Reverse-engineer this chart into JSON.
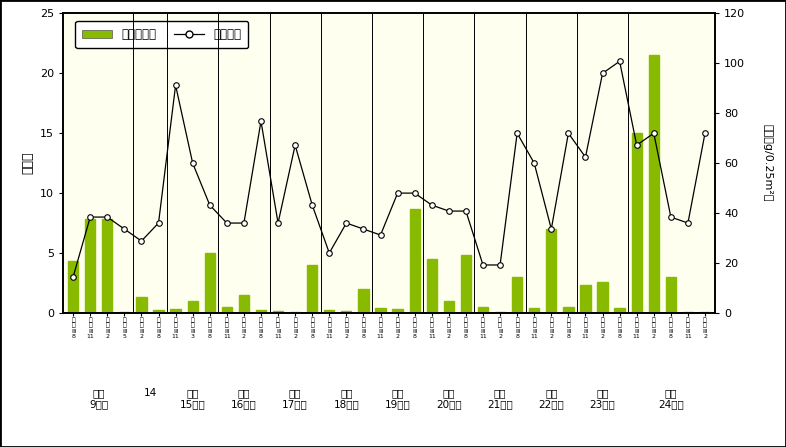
{
  "ylabel_left": "種類数",
  "ylabel_right": "重量（g/0.25m²）",
  "ylim_left": [
    0,
    25
  ],
  "ylim_right": [
    0,
    120
  ],
  "yticks_left": [
    0,
    5,
    10,
    15,
    20,
    25
  ],
  "yticks_right": [
    0,
    20,
    40,
    60,
    80,
    100,
    120
  ],
  "plot_bg_color": "#FFFFF0",
  "fig_bg_color": "#FFFFFF",
  "bar_color": "#88BB00",
  "tick_months": [
    "8",
    "11",
    "2",
    "5",
    "2",
    "8",
    "11",
    "3",
    "8",
    "11",
    "2",
    "8",
    "11",
    "2",
    "8",
    "11",
    "2",
    "8",
    "11",
    "2",
    "8",
    "11",
    "2",
    "8",
    "11",
    "2",
    "8",
    "11",
    "2",
    "8",
    "11",
    "2",
    "8",
    "11",
    "2",
    "8",
    "11",
    "2"
  ],
  "bar_values": [
    4.3,
    7.8,
    7.8,
    0.05,
    1.3,
    0.25,
    0.35,
    1.0,
    5.0,
    0.5,
    1.5,
    0.25,
    0.15,
    0.1,
    4.0,
    0.25,
    0.2,
    2.0,
    0.4,
    0.3,
    8.7,
    4.5,
    1.0,
    4.8,
    0.5,
    0.1,
    3.0,
    0.4,
    7.0,
    0.5,
    2.3,
    2.6,
    0.4,
    15.0,
    21.5,
    3.0,
    0.1,
    0.05
  ],
  "line_values": [
    3.0,
    8.0,
    8.0,
    7.0,
    6.0,
    7.5,
    19.0,
    12.5,
    9.0,
    7.5,
    7.5,
    16.0,
    7.5,
    14.0,
    9.0,
    5.0,
    7.5,
    7.0,
    6.5,
    10.0,
    10.0,
    9.0,
    8.5,
    8.5,
    4.0,
    4.0,
    15.0,
    12.5,
    7.0,
    15.0,
    13.0,
    20.0,
    21.0,
    14.0,
    15.0,
    8.0,
    7.5,
    15.0
  ],
  "year_groups": [
    {
      "label": "平成\n9年度",
      "start": 0,
      "end": 3
    },
    {
      "label": "14",
      "start": 4,
      "end": 5
    },
    {
      "label": "平成\n15年度",
      "start": 6,
      "end": 8
    },
    {
      "label": "平成\n16年度",
      "start": 9,
      "end": 11
    },
    {
      "label": "平成\n17年度",
      "start": 12,
      "end": 14
    },
    {
      "label": "平成\n18年度",
      "start": 15,
      "end": 17
    },
    {
      "label": "平成\n19年度",
      "start": 18,
      "end": 20
    },
    {
      "label": "平成\n20年度",
      "start": 21,
      "end": 23
    },
    {
      "label": "平成\n21年度",
      "start": 24,
      "end": 26
    },
    {
      "label": "平成\n22年度",
      "start": 27,
      "end": 29
    },
    {
      "label": "平成\n23年度",
      "start": 30,
      "end": 32
    },
    {
      "label": "平成\n24年度",
      "start": 33,
      "end": 37
    }
  ],
  "divider_positions": [
    3.5,
    5.5,
    8.5,
    11.5,
    14.5,
    17.5,
    20.5,
    23.5,
    26.5,
    29.5,
    32.5
  ],
  "legend_labels": [
    "平均湿重量",
    "出現種数"
  ]
}
